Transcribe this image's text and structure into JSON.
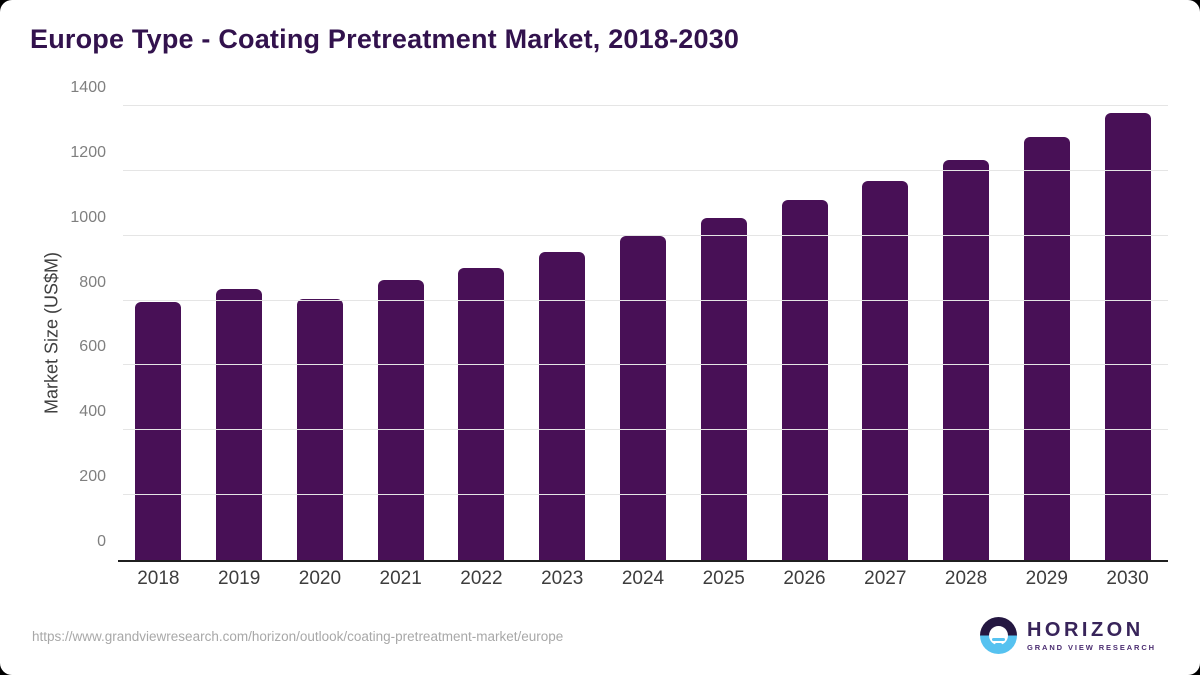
{
  "title": "Europe Type - Coating Pretreatment Market, 2018-2030",
  "chart_data": {
    "type": "bar",
    "categories": [
      "2018",
      "2019",
      "2020",
      "2021",
      "2022",
      "2023",
      "2024",
      "2025",
      "2026",
      "2027",
      "2028",
      "2029",
      "2030"
    ],
    "values": [
      795,
      835,
      805,
      865,
      900,
      950,
      1000,
      1055,
      1110,
      1170,
      1235,
      1305,
      1380
    ],
    "title": "Europe Type - Coating Pretreatment Market, 2018-2030",
    "xlabel": "",
    "ylabel": "Market Size (US$M)",
    "ylim": [
      0,
      1400
    ],
    "yticks": [
      0,
      200,
      400,
      600,
      800,
      1000,
      1200,
      1400
    ],
    "grid": "horizontal gridlines on",
    "legend": "none",
    "bar_color": "#481056"
  },
  "footer": {
    "source_url": "https://www.grandviewresearch.com/horizon/outlook/coating-pretreatment-market/europe",
    "logo": {
      "title": "HORIZON",
      "subtitle": "GRAND VIEW RESEARCH"
    }
  },
  "colors": {
    "bar": "#481056",
    "title_text": "#32124d",
    "grid_line": "#e5e5e5",
    "axis_line": "#1f1f1f",
    "tick_text": "#7f7f7f",
    "logo_dark": "#241741",
    "logo_blue": "#56c2f0"
  }
}
